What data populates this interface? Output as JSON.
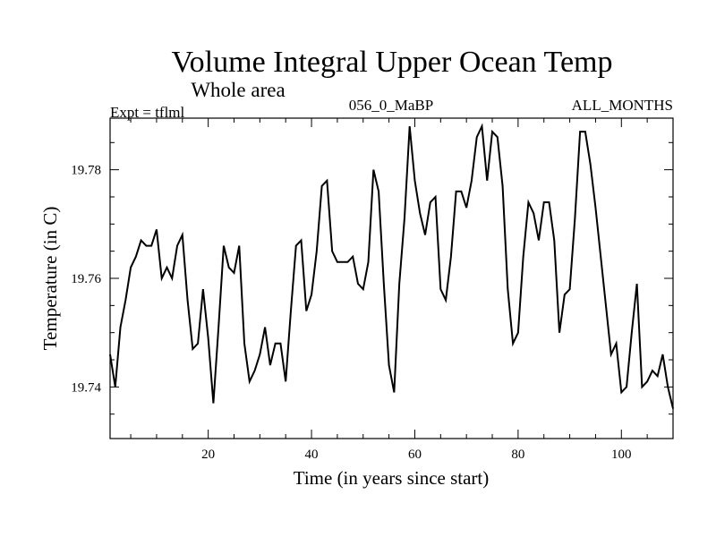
{
  "chart_data": {
    "type": "line",
    "title": "Volume Integral Upper Ocean Temp",
    "subtitle": "Whole area",
    "expt": "Expt = tflml",
    "run_id": "056_0_MaBP",
    "months": "ALL_MONTHS",
    "xlabel": "Time (in years since start)",
    "ylabel": "Temperature (in C)",
    "xlim": [
      1,
      110
    ],
    "ylim": [
      19.7305,
      19.7895
    ],
    "x_ticks": [
      20,
      40,
      60,
      80,
      100
    ],
    "y_ticks": [
      19.74,
      19.76,
      19.78
    ],
    "y_tick_labels": [
      "19.74",
      "19.76",
      "19.78"
    ],
    "series": [
      {
        "name": "Volume Integral Upper Ocean Temp",
        "color": "#000000",
        "x": [
          1,
          2,
          3,
          4,
          5,
          6,
          7,
          8,
          9,
          10,
          11,
          12,
          13,
          14,
          15,
          16,
          17,
          18,
          19,
          20,
          21,
          22,
          23,
          24,
          25,
          26,
          27,
          28,
          29,
          30,
          31,
          32,
          33,
          34,
          35,
          36,
          37,
          38,
          39,
          40,
          41,
          42,
          43,
          44,
          45,
          46,
          47,
          48,
          49,
          50,
          51,
          52,
          53,
          54,
          55,
          56,
          57,
          58,
          59,
          60,
          61,
          62,
          63,
          64,
          65,
          66,
          67,
          68,
          69,
          70,
          71,
          72,
          73,
          74,
          75,
          76,
          77,
          78,
          79,
          80,
          81,
          82,
          83,
          84,
          85,
          86,
          87,
          88,
          89,
          90,
          91,
          92,
          93,
          94,
          95,
          96,
          97,
          98,
          99,
          100,
          101,
          102,
          103,
          104,
          105,
          106,
          107,
          108,
          109,
          110
        ],
        "values": [
          19.746,
          19.74,
          19.751,
          19.756,
          19.762,
          19.764,
          19.767,
          19.766,
          19.766,
          19.769,
          19.76,
          19.762,
          19.76,
          19.766,
          19.768,
          19.756,
          19.747,
          19.748,
          19.758,
          19.749,
          19.737,
          19.751,
          19.766,
          19.762,
          19.761,
          19.766,
          19.748,
          19.741,
          19.743,
          19.746,
          19.751,
          19.744,
          19.748,
          19.748,
          19.741,
          19.754,
          19.766,
          19.767,
          19.754,
          19.757,
          19.765,
          19.777,
          19.778,
          19.765,
          19.763,
          19.763,
          19.763,
          19.764,
          19.759,
          19.758,
          19.763,
          19.78,
          19.776,
          19.759,
          19.744,
          19.739,
          19.759,
          19.771,
          19.788,
          19.778,
          19.772,
          19.768,
          19.774,
          19.775,
          19.758,
          19.756,
          19.764,
          19.776,
          19.776,
          19.773,
          19.778,
          19.786,
          19.788,
          19.778,
          19.787,
          19.786,
          19.777,
          19.758,
          19.748,
          19.75,
          19.764,
          19.774,
          19.772,
          19.767,
          19.774,
          19.774,
          19.767,
          19.75,
          19.757,
          19.758,
          19.771,
          19.787,
          19.787,
          19.781,
          19.773,
          19.764,
          19.755,
          19.746,
          19.748,
          19.739,
          19.74,
          19.75,
          19.759,
          19.74,
          19.741,
          19.743,
          19.742,
          19.746,
          19.74,
          19.736
        ]
      }
    ]
  }
}
